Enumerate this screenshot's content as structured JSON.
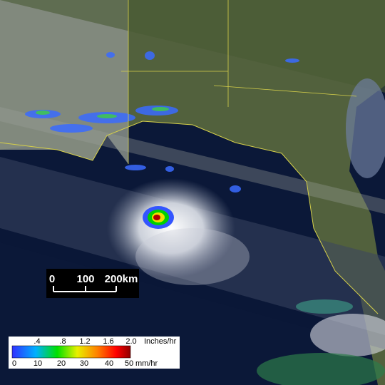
{
  "scale_bar": {
    "labels": [
      "0",
      "100",
      "200km"
    ]
  },
  "legend": {
    "inch_labels": [
      ".4",
      ".8",
      "1.2",
      "1.6",
      "2.0"
    ],
    "inch_unit": "Inches/hr",
    "mm_labels": [
      "0",
      "10",
      "20",
      "30",
      "40",
      "50"
    ],
    "mm_unit": "mm/hr"
  }
}
